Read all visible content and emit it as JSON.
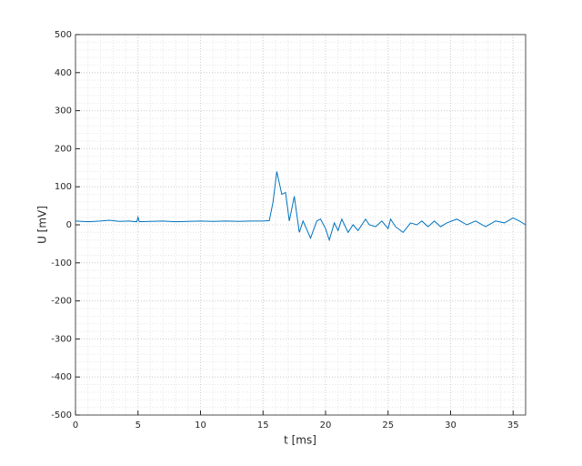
{
  "chart_data": {
    "type": "line",
    "xlabel": "t [ms]",
    "ylabel": "U [mV]",
    "x": [
      0,
      1,
      2,
      2.7,
      3.5,
      4.3,
      4.9,
      5.0,
      5.1,
      6,
      7,
      8,
      9,
      10,
      11,
      12,
      13,
      14,
      15,
      15.5,
      15.8,
      16.1,
      16.5,
      16.8,
      17.1,
      17.5,
      17.9,
      18.2,
      18.8,
      19.3,
      19.6,
      20,
      20.3,
      20.7,
      21,
      21.3,
      21.8,
      22.2,
      22.6,
      23.2,
      23.5,
      24,
      24.5,
      25,
      25.2,
      25.6,
      26.2,
      26.8,
      27.3,
      27.7,
      28.2,
      28.7,
      29.2,
      29.7,
      30.5,
      31.3,
      32,
      32.8,
      33.6,
      34.3,
      35,
      35.5,
      36
    ],
    "series": [
      {
        "name": "U",
        "color": "#0072bd",
        "values": [
          10,
          8,
          10,
          12,
          9,
          10,
          8,
          20,
          8,
          9,
          10,
          8,
          9,
          10,
          9,
          10,
          9,
          10,
          10,
          11,
          60,
          140,
          80,
          85,
          10,
          75,
          -20,
          10,
          -35,
          10,
          15,
          -10,
          -40,
          5,
          -15,
          15,
          -20,
          0,
          -15,
          15,
          0,
          -5,
          10,
          -10,
          15,
          -5,
          -20,
          5,
          0,
          10,
          -5,
          10,
          -5,
          5,
          15,
          0,
          10,
          -5,
          10,
          5,
          18,
          10,
          0
        ]
      }
    ],
    "xlim": [
      0,
      36
    ],
    "xticks": [
      0,
      5,
      10,
      15,
      20,
      25,
      30,
      35
    ],
    "ylim": [
      -500,
      500
    ],
    "yticks": [
      -500,
      -400,
      -300,
      -200,
      -100,
      0,
      100,
      200,
      300,
      400,
      500
    ],
    "grid": true,
    "minor_grid": true
  }
}
